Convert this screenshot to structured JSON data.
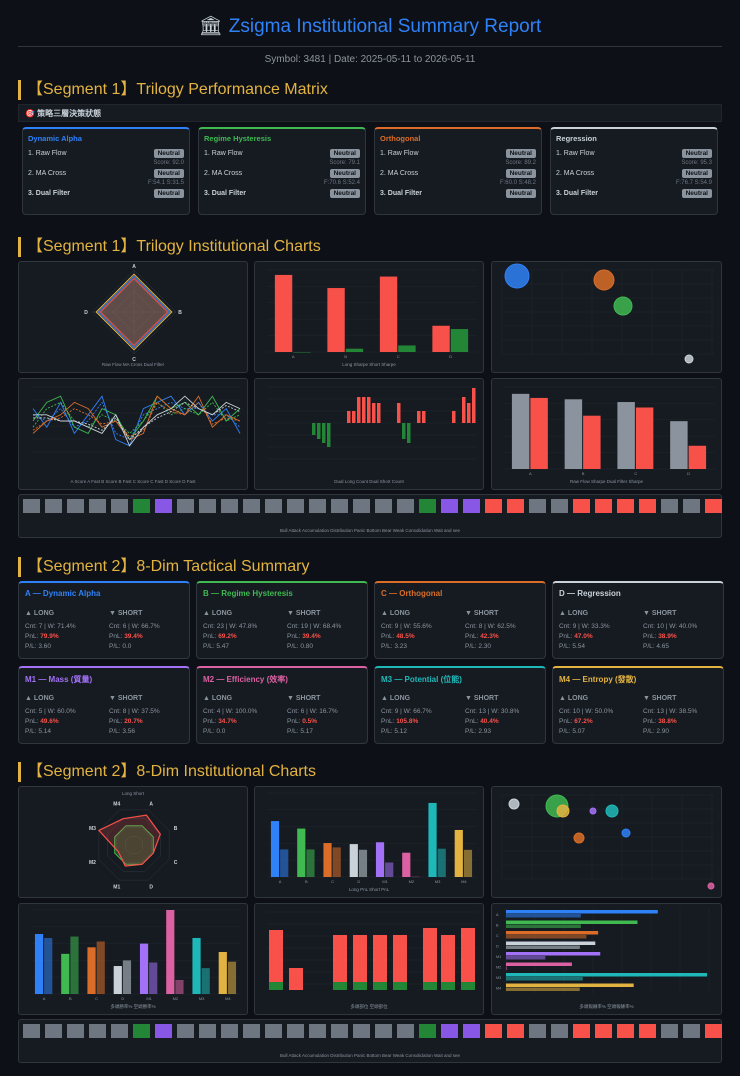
{
  "header": {
    "title": "Zsigma Institutional Summary Report",
    "meta": "Symbol: 3481 | Date: 2025-05-11 to 2026-05-11"
  },
  "seg1_matrix": {
    "title": "【Segment 1】Trilogy Performance Matrix",
    "subbar": "🎯 策略三層決策狀態",
    "cards": [
      {
        "name": "Dynamic Alpha",
        "color": "#2f81f7",
        "rows": [
          "1. Raw Flow",
          "2. MA Cross",
          "3. Dual Filter"
        ],
        "tags": [
          "Neutral",
          "Neutral",
          "Neutral"
        ],
        "sub1": "Score: 92.0",
        "sub2": "F:54.1 S:31.5"
      },
      {
        "name": "Regime Hysteresis",
        "color": "#3fb950",
        "rows": [
          "1. Raw Flow",
          "2. MA Cross",
          "3. Dual Filter"
        ],
        "tags": [
          "Neutral",
          "Neutral",
          "Neutral"
        ],
        "sub1": "Score: 79.1",
        "sub2": "F:70.6 S:52.4"
      },
      {
        "name": "Orthogonal",
        "color": "#db6d28",
        "rows": [
          "1. Raw Flow",
          "2. MA Cross",
          "3. Dual Filter"
        ],
        "tags": [
          "Neutral",
          "Neutral",
          "Neutral"
        ],
        "sub1": "Score: 89.2",
        "sub2": "F:60.0 S:48.2"
      },
      {
        "name": "Regression",
        "color": "#c9d1d9",
        "rows": [
          "1. Raw Flow",
          "2. MA Cross",
          "3. Dual Filter"
        ],
        "tags": [
          "Neutral",
          "Neutral",
          "Neutral"
        ],
        "sub1": "Score: 95.3",
        "sub2": "F:76.7 S:54.9"
      }
    ]
  },
  "seg1_charts": {
    "title": "【Segment 1】Trilogy Institutional Charts"
  },
  "seg2_summary": {
    "title": "【Segment 2】8-Dim Tactical Summary",
    "cards": [
      {
        "name": "A — Dynamic Alpha",
        "color": "#2f81f7",
        "long": [
          "Cnt: 7 | W: 71.4%",
          "79.9%",
          "P/L: 3.60"
        ],
        "short": [
          "Cnt: 6 | W: 66.7%",
          "39.4%",
          "P/L: 0.0"
        ]
      },
      {
        "name": "B — Regime Hysteresis",
        "color": "#3fb950",
        "long": [
          "Cnt: 23 | W: 47.8%",
          "69.2%",
          "P/L: 5.47"
        ],
        "short": [
          "Cnt: 19 | W: 68.4%",
          "39.4%",
          "P/L: 0.80"
        ]
      },
      {
        "name": "C — Orthogonal",
        "color": "#db6d28",
        "long": [
          "Cnt: 9 | W: 55.6%",
          "48.5%",
          "P/L: 3.23"
        ],
        "short": [
          "Cnt: 8 | W: 62.5%",
          "42.3%",
          "P/L: 2.30"
        ]
      },
      {
        "name": "D — Regression",
        "color": "#c9d1d9",
        "long": [
          "Cnt: 9 | W: 33.3%",
          "47.0%",
          "P/L: 5.54"
        ],
        "short": [
          "Cnt: 10 | W: 40.0%",
          "38.9%",
          "P/L: 4.65"
        ]
      },
      {
        "name": "M1 — Mass (質量)",
        "color": "#a371f7",
        "long": [
          "Cnt: 5 | W: 60.0%",
          "49.6%",
          "P/L: 5.14"
        ],
        "short": [
          "Cnt: 8 | W: 37.5%",
          "20.7%",
          "P/L: 3.56"
        ]
      },
      {
        "name": "M2 — Efficiency (效率)",
        "color": "#db61a2",
        "long": [
          "Cnt: 4 | W: 100.0%",
          "34.7%",
          "P/L: 0.0"
        ],
        "short": [
          "Cnt: 6 | W: 16.7%",
          "0.5%",
          "P/L: 5.17"
        ]
      },
      {
        "name": "M3 — Potential (位能)",
        "color": "#1fb8b8",
        "long": [
          "Cnt: 9 | W: 66.7%",
          "105.8%",
          "P/L: 5.12"
        ],
        "short": [
          "Cnt: 13 | W: 30.8%",
          "40.4%",
          "P/L: 2.93"
        ]
      },
      {
        "name": "M4 — Entropy (發散)",
        "color": "#e3b341",
        "long": [
          "Cnt: 10 | W: 50.0%",
          "67.2%",
          "P/L: 5.07"
        ],
        "short": [
          "Cnt: 13 | W: 38.5%",
          "38.8%",
          "P/L: 2.90"
        ]
      }
    ],
    "long_label": "▲ LONG",
    "short_label": "▼ SHORT",
    "pnl_prefix": "PnL: "
  },
  "seg2_charts": {
    "title": "【Segment 2】8-Dim Institutional Charts"
  },
  "legends": {
    "radar1": "Raw Flow  MA Cross  Dual Filter",
    "bars1": "Long Sharpe  Short Sharpe",
    "lines1": "A Score  A Fast  B Score  B Fast  C Score  C Fast  D Score  D Fast",
    "pos1": "Dual Long Count  Dual Short Count",
    "sharpe1": "Raw Flow Sharpe  Dual Filter Sharpe",
    "strip": "Bull Attack  Accumulation  Distribution  Panic Bottom  Bear Weak  Consolidation  Wait and see",
    "radar2": "Long  Short",
    "pnl2": "Long PnL  Short PnL",
    "win2": "多頭勝率%  空頭勝率%",
    "pos2": "多頭部位  空頭部位",
    "hbar2": "多頭報酬率%  空頭報酬率%"
  },
  "colors": {
    "red": "#f85149",
    "green": "#3fb950",
    "blue": "#2f81f7",
    "orange": "#db6d28",
    "gray": "#8b949e",
    "purple": "#a371f7",
    "pink": "#db61a2",
    "teal": "#1fb8b8",
    "yellow": "#e3b341",
    "regime_green": "#238636"
  },
  "chart_data": [
    {
      "type": "bar",
      "title": "",
      "categories": [
        "A",
        "B",
        "C",
        "D"
      ],
      "series": [
        {
          "name": "Long Sharpe",
          "values": [
            4.7,
            3.9,
            4.6,
            1.6
          ]
        },
        {
          "name": "Short Sharpe",
          "values": [
            0.0,
            0.2,
            0.4,
            1.4
          ]
        }
      ]
    },
    {
      "type": "bar",
      "title": "",
      "categories": [
        "A",
        "B",
        "C",
        "D"
      ],
      "series": [
        {
          "name": "Raw Flow Sharpe",
          "values": [
            5.5,
            5.1,
            4.9,
            3.5
          ]
        },
        {
          "name": "Dual Filter Sharpe",
          "values": [
            5.2,
            3.9,
            4.5,
            1.7
          ]
        }
      ]
    },
    {
      "type": "bar",
      "title": "",
      "categories": [
        "A",
        "B",
        "C",
        "D",
        "M1",
        "M2",
        "M3",
        "M4"
      ],
      "series": [
        {
          "name": "Long PnL",
          "values": [
            79.9,
            69.2,
            48.5,
            47.0,
            49.6,
            34.7,
            105.8,
            67.2
          ]
        },
        {
          "name": "Short PnL",
          "values": [
            39.4,
            39.4,
            42.3,
            38.9,
            20.7,
            0.5,
            40.4,
            38.8
          ]
        }
      ]
    },
    {
      "type": "bar",
      "title": "",
      "categories": [
        "A",
        "B",
        "C",
        "D",
        "M1",
        "M2",
        "M3",
        "M4"
      ],
      "series": [
        {
          "name": "多頭勝率%",
          "values": [
            71.4,
            47.8,
            55.6,
            33.3,
            60.0,
            100.0,
            66.7,
            50.0
          ]
        },
        {
          "name": "空頭勝率%",
          "values": [
            66.7,
            68.4,
            62.5,
            40.0,
            37.5,
            16.7,
            30.8,
            38.5
          ]
        }
      ]
    }
  ]
}
